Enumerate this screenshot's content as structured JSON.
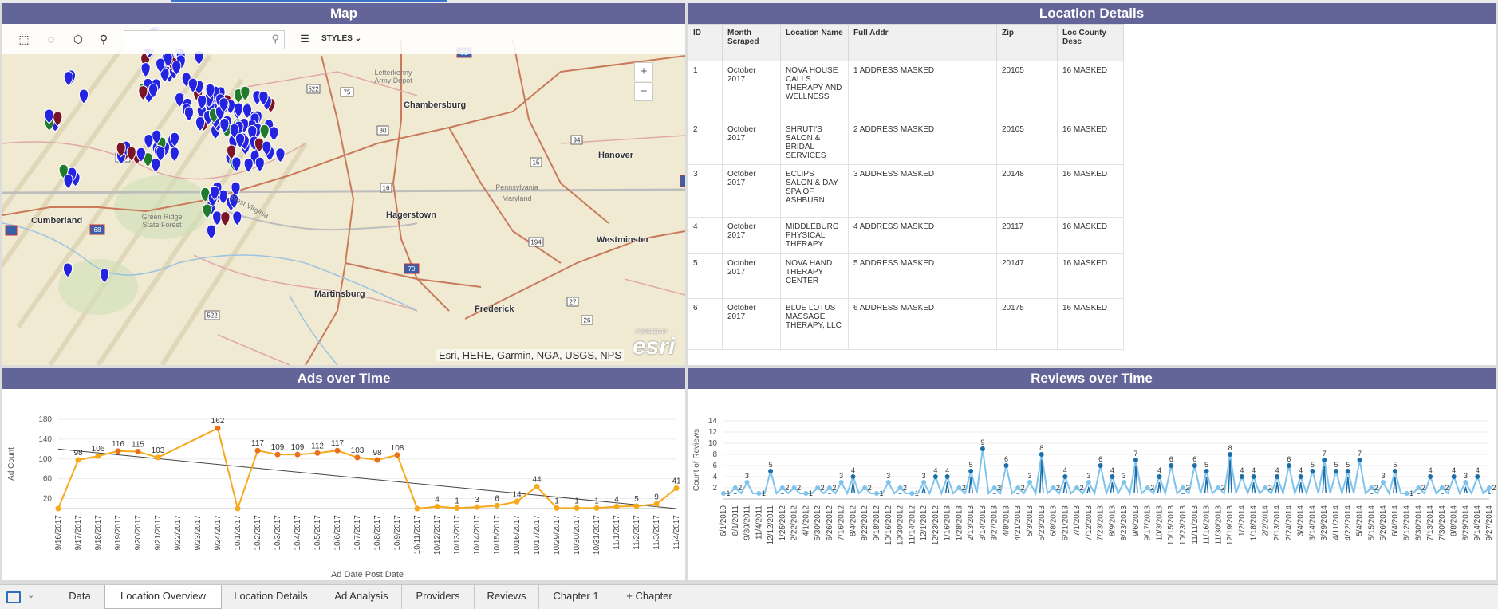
{
  "map": {
    "title": "Map",
    "styles_label": "STYLES",
    "zoom_in": "+",
    "zoom_out": "−",
    "attribution": "Esri, HERE, Garmin, NGA, USGS, NPS",
    "esri_powered": "POWERED BY",
    "esri_logo": "esri",
    "cities": [
      "Chambersburg",
      "Hanover",
      "Cumberland",
      "Hagerstown",
      "Westminster",
      "Martinsburg",
      "Frederick"
    ],
    "places": [
      "Letterkenny Army Depot",
      "Green Ridge State Forest",
      "West Virginia",
      "Pennsylvania",
      "Maryland"
    ],
    "route_shields": [
      "522",
      "75",
      "30",
      "15",
      "94",
      "16",
      "194",
      "70",
      "27",
      "26",
      "68",
      "220",
      "522",
      "81"
    ],
    "pin_colors": {
      "blue": "#2323e0",
      "green": "#1f7a2a",
      "maroon": "#7a1426"
    }
  },
  "location_details": {
    "title": "Location Details",
    "columns": [
      "ID",
      "Month Scraped",
      "Location Name",
      "Full Addr",
      "Zip",
      "Loc County Desc"
    ],
    "rows": [
      [
        "1",
        "October 2017",
        "NOVA HOUSE CALLS THERAPY AND WELLNESS",
        "1 ADDRESS MASKED",
        "20105",
        "16 MASKED"
      ],
      [
        "2",
        "October 2017",
        "SHRUTI'S SALON & BRIDAL SERVICES",
        "2 ADDRESS MASKED",
        "20105",
        "16 MASKED"
      ],
      [
        "3",
        "October 2017",
        "ECLIPS SALON & DAY SPA OF ASHBURN",
        "3 ADDRESS MASKED",
        "20148",
        "16 MASKED"
      ],
      [
        "4",
        "October 2017",
        "MIDDLEBURG PHYSICAL THERAPY",
        "4 ADDRESS MASKED",
        "20117",
        "16 MASKED"
      ],
      [
        "5",
        "October 2017",
        "NOVA HAND THERAPY CENTER",
        "5 ADDRESS MASKED",
        "20147",
        "16 MASKED"
      ],
      [
        "6",
        "October 2017",
        "BLUE LOTUS MASSAGE THERAPY, LLC",
        "6 ADDRESS MASKED",
        "20175",
        "16 MASKED"
      ]
    ]
  },
  "ads_panel": {
    "title": "Ads over Time"
  },
  "reviews_panel": {
    "title": "Reviews over Time"
  },
  "chart_data": [
    {
      "type": "line",
      "title": "Ads over Time",
      "xlabel": "Ad Date Post Date",
      "ylabel": "Ad Count",
      "ylim": [
        0,
        180
      ],
      "yticks": [
        20,
        60,
        100,
        140,
        180
      ],
      "grid": true,
      "categories": [
        "9/16/2017",
        "9/17/2017",
        "9/18/2017",
        "9/19/2017",
        "9/20/2017",
        "9/21/2017",
        "9/22/2017",
        "9/23/2017",
        "9/24/2017",
        "10/1/2017",
        "10/2/2017",
        "10/3/2017",
        "10/4/2017",
        "10/5/2017",
        "10/6/2017",
        "10/7/2017",
        "10/8/2017",
        "10/9/2017",
        "10/11/2017",
        "10/12/2017",
        "10/13/2017",
        "10/14/2017",
        "10/15/2017",
        "10/16/2017",
        "10/17/2017",
        "10/29/2017",
        "10/30/2017",
        "10/31/2017",
        "11/1/2017",
        "11/2/2017",
        "11/3/2017",
        "11/4/2017"
      ],
      "values": [
        0,
        98,
        106,
        116,
        115,
        103,
        null,
        null,
        162,
        0,
        117,
        109,
        109,
        112,
        117,
        103,
        98,
        108,
        0,
        4,
        1,
        3,
        6,
        14,
        44,
        1,
        1,
        1,
        4,
        5,
        9,
        41
      ],
      "data_labels": [
        null,
        "98",
        "106",
        "116",
        "115",
        "103",
        null,
        null,
        "162",
        null,
        "117",
        "109",
        "109",
        "112",
        "117",
        "103",
        "98",
        "108",
        null,
        "4",
        "1",
        "3",
        "6",
        "14",
        "44",
        "1",
        "1",
        "1",
        "4",
        "5",
        "9",
        "41"
      ],
      "trendline": {
        "start": 120,
        "end": 0
      },
      "colors": {
        "light": "#f7a81b",
        "dark": "#e8701a",
        "trend": "#444444"
      }
    },
    {
      "type": "line",
      "title": "Reviews over Time",
      "xlabel": "",
      "ylabel": "Count of Reviews",
      "ylim": [
        0,
        14
      ],
      "yticks": [
        2,
        4,
        6,
        8,
        10,
        12,
        14
      ],
      "grid": true,
      "categories": [
        "6/1/2010",
        "8/1/2011",
        "9/30/2011",
        "11/4/2011",
        "12/12/2011",
        "1/25/2012",
        "2/22/2012",
        "4/1/2012",
        "5/30/2012",
        "6/26/2012",
        "7/16/2012",
        "8/4/2012",
        "8/22/2012",
        "9/18/2012",
        "10/16/2012",
        "10/30/2012",
        "11/14/2012",
        "12/1/2012",
        "12/23/2012",
        "1/16/2013",
        "1/28/2013",
        "2/13/2013",
        "3/14/2013",
        "3/27/2013",
        "4/8/2013",
        "4/21/2013",
        "5/3/2013",
        "5/23/2013",
        "6/8/2013",
        "6/21/2013",
        "7/1/2013",
        "7/12/2013",
        "7/23/2013",
        "8/9/2013",
        "8/23/2013",
        "9/6/2013",
        "9/17/2013",
        "10/3/2013",
        "10/15/2013",
        "10/23/2013",
        "11/11/2013",
        "11/16/2013",
        "11/30/2013",
        "12/19/2013",
        "1/2/2014",
        "1/18/2014",
        "2/2/2014",
        "2/13/2014",
        "2/24/2014",
        "3/4/2014",
        "3/14/2014",
        "3/29/2014",
        "4/11/2014",
        "4/22/2014",
        "5/4/2014",
        "5/15/2014",
        "5/26/2014",
        "6/4/2014",
        "6/12/2014",
        "6/30/2014",
        "7/13/2014",
        "7/30/2014",
        "8/8/2014",
        "8/29/2014",
        "9/14/2014",
        "9/27/2014"
      ],
      "values": [
        1,
        2,
        3,
        1,
        5,
        2,
        2,
        1,
        2,
        2,
        3,
        4,
        2,
        1,
        3,
        2,
        1,
        3,
        4,
        4,
        2,
        5,
        9,
        2,
        6,
        2,
        3,
        8,
        2,
        4,
        2,
        3,
        6,
        4,
        3,
        7,
        2,
        4,
        6,
        2,
        6,
        5,
        2,
        8,
        4,
        4,
        2,
        4,
        6,
        4,
        5,
        7,
        5,
        5,
        7,
        2,
        3,
        5,
        1,
        2,
        4,
        2,
        4,
        3,
        4,
        2
      ],
      "colors": {
        "light": "#7ec3ec",
        "dark": "#1c6ea8"
      }
    }
  ],
  "tabs": [
    "Data",
    "Location Overview",
    "Location Details",
    "Ad Analysis",
    "Providers",
    "Reviews",
    "Chapter 1",
    "Chapter"
  ],
  "active_tab": "Location Overview",
  "new_tab_symbol": "+"
}
